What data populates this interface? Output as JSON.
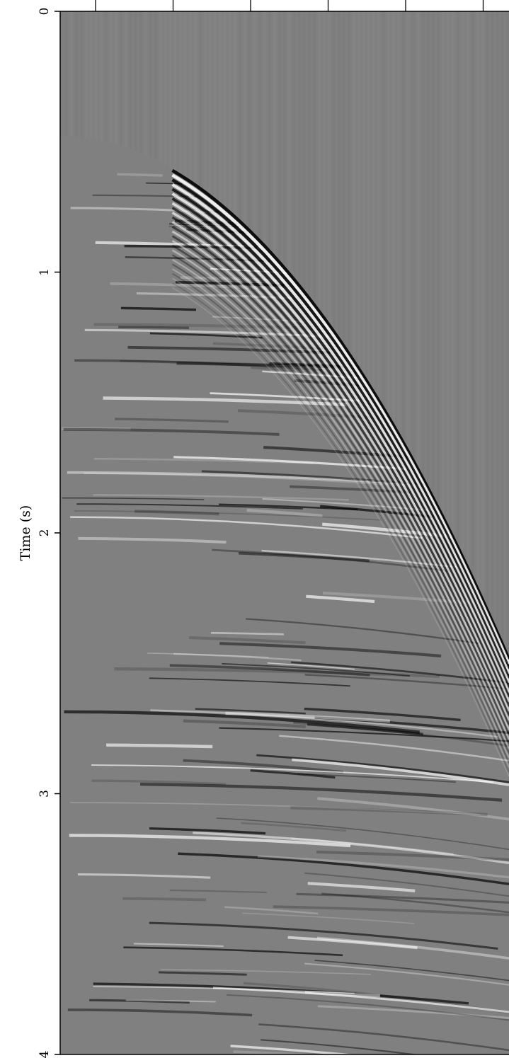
{
  "chart_data": {
    "type": "heatmap",
    "subtype": "seismic-gather",
    "colormap": "grayscale",
    "ylabel": "Time (s)",
    "xlabel": "",
    "ylim": [
      0,
      4
    ],
    "y_inverted": true,
    "yticks": [
      0,
      1,
      2,
      3,
      4
    ],
    "ytick_labels": [
      "0",
      "1",
      "2",
      "3",
      "4"
    ],
    "top_tick_count": 6,
    "x_tick_labels": [],
    "grid": false,
    "colors": {
      "background": "#808080",
      "peak": "#000000",
      "trough": "#ffffff",
      "axis": "#000000"
    },
    "events": {
      "first_break_onset_s": 0.48,
      "moveout": "hyperbolic",
      "strongest_amplitude_region": "right side, 1.5 s to 2.6 s"
    }
  }
}
